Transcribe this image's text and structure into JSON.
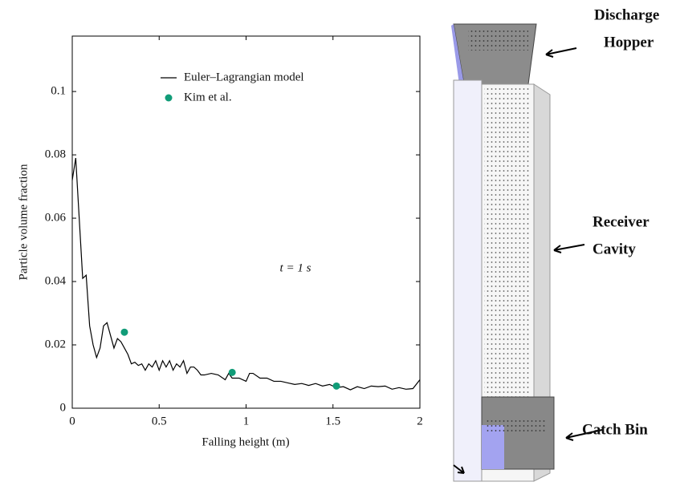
{
  "chart_data": {
    "type": "line",
    "xlabel": "Falling height (m)",
    "ylabel": "Particle volume fraction",
    "annotation": "t = 1 s",
    "xlim": [
      0,
      2
    ],
    "ylim": [
      0,
      0.1175
    ],
    "xticks": [
      0,
      0.5,
      1,
      1.5,
      2
    ],
    "yticks": [
      0,
      0.02,
      0.04,
      0.06,
      0.08,
      0.1
    ],
    "series": [
      {
        "name": "Euler–Lagrangian model",
        "color": "#000000",
        "kind": "line",
        "x": [
          0,
          0.02,
          0.04,
          0.06,
          0.08,
          0.1,
          0.12,
          0.14,
          0.16,
          0.18,
          0.2,
          0.22,
          0.24,
          0.26,
          0.28,
          0.3,
          0.32,
          0.34,
          0.36,
          0.38,
          0.4,
          0.42,
          0.44,
          0.46,
          0.48,
          0.5,
          0.52,
          0.54,
          0.56,
          0.58,
          0.6,
          0.62,
          0.64,
          0.66,
          0.68,
          0.7,
          0.72,
          0.74,
          0.76,
          0.8,
          0.84,
          0.88,
          0.9,
          0.92,
          0.96,
          1.0,
          1.02,
          1.04,
          1.08,
          1.12,
          1.16,
          1.2,
          1.24,
          1.28,
          1.32,
          1.36,
          1.4,
          1.44,
          1.48,
          1.52,
          1.56,
          1.6,
          1.64,
          1.68,
          1.72,
          1.76,
          1.8,
          1.84,
          1.88,
          1.92,
          1.96,
          2.0
        ],
        "values": [
          0.072,
          0.079,
          0.06,
          0.041,
          0.042,
          0.026,
          0.02,
          0.016,
          0.019,
          0.026,
          0.027,
          0.023,
          0.019,
          0.022,
          0.021,
          0.019,
          0.017,
          0.014,
          0.0145,
          0.0135,
          0.014,
          0.012,
          0.014,
          0.013,
          0.015,
          0.012,
          0.015,
          0.013,
          0.015,
          0.012,
          0.014,
          0.013,
          0.015,
          0.011,
          0.013,
          0.013,
          0.012,
          0.0105,
          0.0105,
          0.011,
          0.0105,
          0.009,
          0.011,
          0.0095,
          0.0095,
          0.0085,
          0.011,
          0.011,
          0.0095,
          0.0095,
          0.0085,
          0.0085,
          0.008,
          0.0075,
          0.0078,
          0.0072,
          0.0078,
          0.007,
          0.0075,
          0.0065,
          0.0068,
          0.0058,
          0.0068,
          0.0062,
          0.007,
          0.0068,
          0.007,
          0.006,
          0.0065,
          0.006,
          0.0062,
          0.009
        ]
      },
      {
        "name": "Kim et al.",
        "color": "#119c78",
        "kind": "scatter",
        "x": [
          0.3,
          0.92,
          1.52
        ],
        "values": [
          0.024,
          0.0113,
          0.007
        ]
      }
    ]
  },
  "diagram": {
    "discharge_hopper": [
      "Discharge",
      "Hopper"
    ],
    "receiver_cavity": [
      "Receiver",
      "Cavity"
    ],
    "catch_bin": "Catch Bin"
  }
}
